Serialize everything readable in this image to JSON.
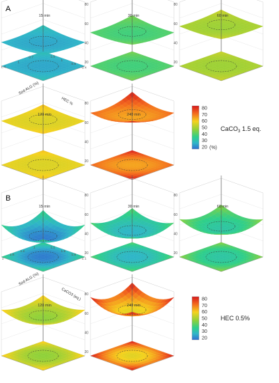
{
  "figure": {
    "panel_a_label": "A",
    "panel_b_label": "B",
    "colorbar_a": {
      "ticks": [
        "80",
        "70",
        "60",
        "50",
        "40",
        "30",
        "20"
      ],
      "unit": "(%)",
      "caption_base": "CaCO",
      "caption_sub": "3",
      "caption_rest": " 1.5 eq."
    },
    "colorbar_b": {
      "ticks": [
        "80",
        "70",
        "60",
        "50",
        "40",
        "30",
        "20"
      ],
      "caption": "HEC 0.5%"
    }
  },
  "chart_data": [
    {
      "type": "heatmap",
      "panel": "A",
      "title": "15 min",
      "xlabel": "Sod ALG (%)",
      "ylabel": "HEC %",
      "sod_alg_ticks": [
        "0.7",
        "1",
        "1.4"
      ],
      "hec_ticks": [
        "1.5",
        "1",
        "0.6",
        "0.4"
      ],
      "z_ticks": [
        "80",
        "60",
        "40",
        "20"
      ],
      "z_center": 26,
      "z_corner": 34,
      "shape": "saddle"
    },
    {
      "type": "heatmap",
      "panel": "A",
      "title": "30 min",
      "z_ticks": [
        "80",
        "60",
        "40",
        "20"
      ],
      "z_center": 40,
      "z_corner": 48,
      "shape": "saddle"
    },
    {
      "type": "heatmap",
      "panel": "A",
      "title": "60 min",
      "z_ticks": [
        "80",
        "60",
        "40",
        "20"
      ],
      "z_center": 50,
      "z_corner": 56,
      "shape": "saddle"
    },
    {
      "type": "heatmap",
      "panel": "A",
      "title": "120 min",
      "z_ticks": [
        "80",
        "60",
        "40",
        "20"
      ],
      "z_center": 56,
      "z_corner": 62,
      "shape": "saddle"
    },
    {
      "type": "heatmap",
      "panel": "A",
      "title": "240 min",
      "z_ticks": [
        "80",
        "60",
        "40",
        "20"
      ],
      "z_center": 60,
      "z_corner": 80,
      "shape": "saddle"
    },
    {
      "type": "heatmap",
      "panel": "B",
      "title": "15 min",
      "xlabel": "Sod ALG (%)",
      "ylabel": "CaCO3 (eq.)",
      "sod_alg_ticks": [
        "1",
        "1.4",
        "1.6",
        "2"
      ],
      "caco3_ticks": [
        "1.2",
        "1.5",
        "1.8",
        "2.1"
      ],
      "z_ticks": [
        "80",
        "60",
        "40",
        "20"
      ],
      "z_center": 22,
      "z_corner": 42,
      "shape": "bowl"
    },
    {
      "type": "heatmap",
      "panel": "B",
      "title": "30 min",
      "z_ticks": [
        "80",
        "60",
        "40",
        "20"
      ],
      "z_center": 30,
      "z_corner": 45,
      "shape": "bowl"
    },
    {
      "type": "heatmap",
      "panel": "B",
      "title": "60 min",
      "z_ticks": [
        "80",
        "60",
        "40",
        "20"
      ],
      "z_center": 36,
      "z_corner": 50,
      "shape": "bowl"
    },
    {
      "type": "heatmap",
      "panel": "B",
      "title": "120 min",
      "z_ticks": [
        "80",
        "60",
        "40",
        "20"
      ],
      "z_center": 50,
      "z_corner": 62,
      "shape": "bowl"
    },
    {
      "type": "heatmap",
      "panel": "B",
      "title": "240 min",
      "z_ticks": [
        "80",
        "60",
        "40",
        "20"
      ],
      "z_center": 58,
      "z_corner": 80,
      "shape": "bowl"
    }
  ]
}
